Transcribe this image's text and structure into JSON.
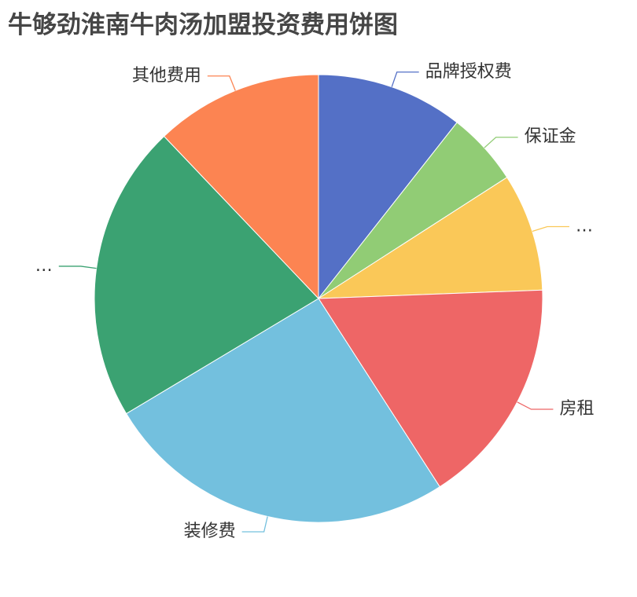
{
  "chart_data": {
    "type": "pie",
    "title": "牛够劲淮南牛肉汤加盟投资费用饼图",
    "slices": [
      {
        "label": "品牌授权费",
        "value": 10.6,
        "color": "#5470c6"
      },
      {
        "label": "保证金",
        "value": 5.3,
        "color": "#91cc75"
      },
      {
        "label": "…",
        "value": 8.5,
        "color": "#fac858"
      },
      {
        "label": "房租",
        "value": 16.5,
        "color": "#ee6666"
      },
      {
        "label": "装修费",
        "value": 25.5,
        "color": "#73c0de"
      },
      {
        "label": "…",
        "value": 21.5,
        "color": "#3ba272"
      },
      {
        "label": "其他费用",
        "value": 12.1,
        "color": "#fc8452"
      }
    ]
  }
}
